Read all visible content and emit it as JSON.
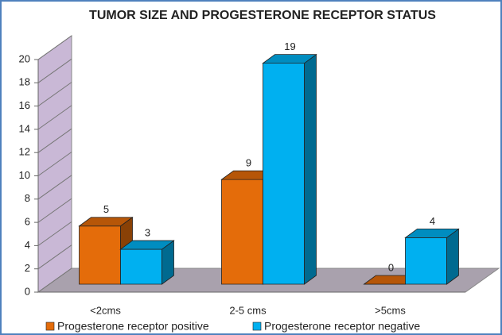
{
  "chart_data": {
    "type": "bar3d",
    "title": "TUMOR SIZE AND PROGESTERONE RECEPTOR STATUS",
    "categories": [
      "<2cms",
      "2-5 cms",
      ">5cms"
    ],
    "series": [
      {
        "name": "Progesterone receptor positive",
        "color": "#e46c0a",
        "values": [
          5,
          9,
          0
        ]
      },
      {
        "name": "Progesterone receptor negative",
        "color": "#00b0f0",
        "values": [
          3,
          19,
          4
        ]
      }
    ],
    "ylim": [
      0,
      20
    ],
    "yticks": [
      0,
      2,
      4,
      6,
      8,
      10,
      12,
      14,
      16,
      18,
      20
    ],
    "grid": true,
    "legend": "bottom"
  }
}
